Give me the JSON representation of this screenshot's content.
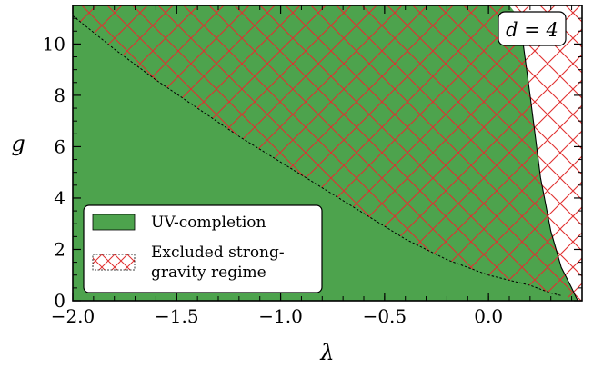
{
  "chart_data": {
    "type": "area",
    "title": "",
    "xlabel": "λ",
    "ylabel": "g",
    "xlim": [
      -2.0,
      0.45
    ],
    "ylim": [
      0,
      11.5
    ],
    "x_ticks": [
      -2.0,
      -1.5,
      -1.0,
      -0.5,
      0.0
    ],
    "x_tick_labels": [
      "−2.0",
      "−1.5",
      "−1.0",
      "−0.5",
      "0.0"
    ],
    "y_ticks": [
      0,
      2,
      4,
      6,
      8,
      10
    ],
    "y_tick_labels": [
      "0",
      "2",
      "4",
      "6",
      "8",
      "10"
    ],
    "annotation": "d = 4",
    "grid": false,
    "legend_position": "lower-left",
    "colors": {
      "uv_fill": "#4da34d",
      "hatch": "#e03030",
      "boundary": "#000000"
    },
    "series": [
      {
        "name": "UV-completion",
        "style": "filled-region",
        "upper_boundary": {
          "x": [
            -2.0,
            -1.8,
            -1.6,
            -1.4,
            -1.2,
            -1.0,
            -0.8,
            -0.6,
            -0.4,
            -0.2,
            0.0,
            0.1,
            0.15,
            0.2,
            0.25,
            0.3,
            0.35,
            0.4,
            0.42,
            0.43
          ],
          "g": [
            11.5,
            11.5,
            11.5,
            11.5,
            11.5,
            11.5,
            11.5,
            11.5,
            11.5,
            11.5,
            11.5,
            11.5,
            11.0,
            8.0,
            4.8,
            2.7,
            1.3,
            0.5,
            0.15,
            0.0
          ]
        }
      },
      {
        "name": "Excluded strong-gravity regime",
        "style": "hatched-region",
        "lower_boundary": {
          "x": [
            -2.0,
            -1.8,
            -1.6,
            -1.4,
            -1.2,
            -1.0,
            -0.8,
            -0.6,
            -0.4,
            -0.2,
            0.0,
            0.2,
            0.3,
            0.35
          ],
          "g": [
            11.1,
            9.8,
            8.6,
            7.5,
            6.4,
            5.4,
            4.4,
            3.4,
            2.4,
            1.6,
            1.0,
            0.6,
            0.3,
            0.2
          ]
        }
      }
    ]
  }
}
